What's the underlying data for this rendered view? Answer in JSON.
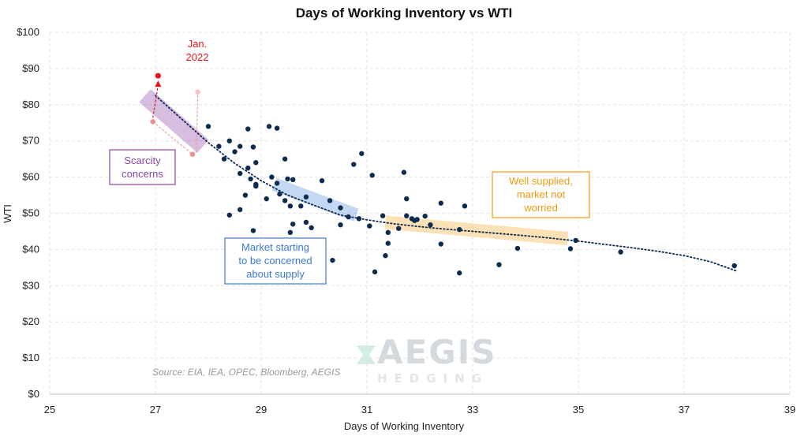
{
  "chart_data": {
    "type": "scatter",
    "title": "Days of Working Inventory vs WTI",
    "xlabel": "Days of Working Inventory",
    "ylabel": "WTI",
    "xlim": [
      25,
      39
    ],
    "ylim": [
      0,
      100
    ],
    "xticks": [
      25,
      27,
      29,
      31,
      33,
      35,
      37,
      39
    ],
    "yticks": [
      0,
      10,
      20,
      30,
      40,
      50,
      60,
      70,
      80,
      90,
      100
    ],
    "ytick_labels": [
      "$0",
      "$10",
      "$20",
      "$30",
      "$40",
      "$50",
      "$60",
      "$70",
      "$80",
      "$90",
      "$100"
    ],
    "grid": true,
    "source": "Source: EIA, IEA, OPEC, Bloomberg, AEGIS",
    "watermark": {
      "line1": "AEGIS",
      "line2": "HEDGING"
    },
    "colors": {
      "points": "#0d2a4f",
      "highlight": "#e8141b",
      "faded": "#f08e8e",
      "trend": "#0d2a4f",
      "scarcity": "#8c44a8",
      "concerned": "#3b79d8",
      "supplied": "#f29b0b"
    },
    "points": [
      [
        28.0,
        74.0
      ],
      [
        28.2,
        68.5
      ],
      [
        28.4,
        70.0
      ],
      [
        28.3,
        65.0
      ],
      [
        28.5,
        67.0
      ],
      [
        28.6,
        68.5
      ],
      [
        28.75,
        73.3
      ],
      [
        28.85,
        68.3
      ],
      [
        28.6,
        61.0
      ],
      [
        28.75,
        62.5
      ],
      [
        28.8,
        59.5
      ],
      [
        28.9,
        64.0
      ],
      [
        28.9,
        58.0
      ],
      [
        28.7,
        55.0
      ],
      [
        28.6,
        51.0
      ],
      [
        28.4,
        49.5
      ],
      [
        28.9,
        57.5
      ],
      [
        28.85,
        45.2
      ],
      [
        29.15,
        74.0
      ],
      [
        29.3,
        73.5
      ],
      [
        29.45,
        65.0
      ],
      [
        29.2,
        60.0
      ],
      [
        29.3,
        58.3
      ],
      [
        29.5,
        59.5
      ],
      [
        29.6,
        59.3
      ],
      [
        29.1,
        54.0
      ],
      [
        29.35,
        55.3
      ],
      [
        29.45,
        53.5
      ],
      [
        29.55,
        52.0
      ],
      [
        29.75,
        52.0
      ],
      [
        29.85,
        54.5
      ],
      [
        29.6,
        47.0
      ],
      [
        29.85,
        47.5
      ],
      [
        29.55,
        44.7
      ],
      [
        29.95,
        46.0
      ],
      [
        30.15,
        59.0
      ],
      [
        30.3,
        53.5
      ],
      [
        30.5,
        51.5
      ],
      [
        30.5,
        46.8
      ],
      [
        30.65,
        49.0
      ],
      [
        30.75,
        63.5
      ],
      [
        30.9,
        66.5
      ],
      [
        30.85,
        48.5
      ],
      [
        31.05,
        46.5
      ],
      [
        31.1,
        60.5
      ],
      [
        30.35,
        37.0
      ],
      [
        31.15,
        33.8
      ],
      [
        31.3,
        49.3
      ],
      [
        31.4,
        44.7
      ],
      [
        31.35,
        38.3
      ],
      [
        31.4,
        41.7
      ],
      [
        31.6,
        45.8
      ],
      [
        31.7,
        61.3
      ],
      [
        31.75,
        54.0
      ],
      [
        31.75,
        49.3
      ],
      [
        31.85,
        48.5
      ],
      [
        31.9,
        48.0
      ],
      [
        31.95,
        48.3
      ],
      [
        32.1,
        49.2
      ],
      [
        32.2,
        46.8
      ],
      [
        32.4,
        52.8
      ],
      [
        32.4,
        41.5
      ],
      [
        32.75,
        45.5
      ],
      [
        32.85,
        52.0
      ],
      [
        32.75,
        33.5
      ],
      [
        33.5,
        35.8
      ],
      [
        33.85,
        40.3
      ],
      [
        34.85,
        40.2
      ],
      [
        34.95,
        42.5
      ],
      [
        35.8,
        39.3
      ],
      [
        37.95,
        35.5
      ]
    ],
    "trendline": [
      [
        27.0,
        82.5
      ],
      [
        27.5,
        76.0
      ],
      [
        28.0,
        69.5
      ],
      [
        28.5,
        63.8
      ],
      [
        29.0,
        59.0
      ],
      [
        29.5,
        55.0
      ],
      [
        30.0,
        52.2
      ],
      [
        30.5,
        49.5
      ],
      [
        31.0,
        48.2
      ],
      [
        31.5,
        47.1
      ],
      [
        32.0,
        46.3
      ],
      [
        32.5,
        45.6
      ],
      [
        33.0,
        45.0
      ],
      [
        33.5,
        44.4
      ],
      [
        34.0,
        43.8
      ],
      [
        34.5,
        43.1
      ],
      [
        35.0,
        42.3
      ],
      [
        35.5,
        41.4
      ],
      [
        36.0,
        40.5
      ],
      [
        36.5,
        39.5
      ],
      [
        37.0,
        38.3
      ],
      [
        37.5,
        36.6
      ],
      [
        38.0,
        34.0
      ]
    ],
    "highlight": {
      "label": "Jan.\n2022",
      "point": [
        27.05,
        88.0
      ],
      "arrow_from": [
        26.95,
        75.3
      ]
    },
    "faded_points": [
      [
        26.95,
        75.3
      ],
      [
        27.7,
        66.3
      ],
      [
        27.8,
        83.5
      ]
    ],
    "bands": [
      {
        "name": "scarcity",
        "from": [
          26.8,
          82.5
        ],
        "to": [
          27.9,
          68.5
        ]
      },
      {
        "name": "concerned",
        "from": [
          29.25,
          58.0
        ],
        "to": [
          30.8,
          49.5
        ]
      },
      {
        "name": "supplied",
        "from": [
          31.35,
          47.5
        ],
        "to": [
          34.8,
          43.0
        ]
      }
    ],
    "annotations": [
      {
        "name": "scarcity",
        "lines": [
          "Scarcity",
          "concerns"
        ]
      },
      {
        "name": "concerned",
        "lines": [
          "Market starting",
          "to be concerned",
          "about supply"
        ]
      },
      {
        "name": "supplied",
        "lines": [
          "Well supplied,",
          "market not",
          "worried"
        ]
      }
    ]
  }
}
